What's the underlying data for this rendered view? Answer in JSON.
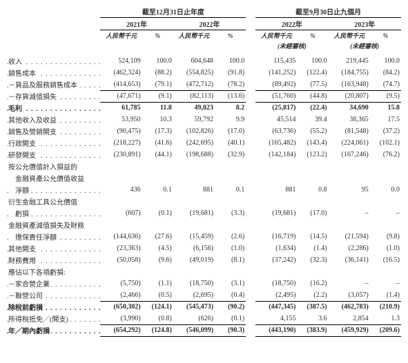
{
  "headers": {
    "period1_title": "截至12月31日止年度",
    "period2_title": "截至9月30日止九個月",
    "yr2021": "2021年",
    "yr2022": "2022年",
    "yr2022_9m": "2022年",
    "yr2023_9m": "2023年",
    "col_amount": "人民幣千元",
    "col_pct": "%",
    "unaudited": "(未經審核)"
  },
  "rows": [
    {
      "label": "收入",
      "v": [
        "524,109",
        "100.0",
        "604,648",
        "100.0",
        "115,435",
        "100.0",
        "219,445",
        "100.0"
      ],
      "dots": 1
    },
    {
      "label": "銷售成本",
      "v": [
        "(462,324)",
        "(88.2)",
        "(554,825)",
        "(91.8)",
        "(141,252)",
        "(122.4)",
        "(184,755)",
        "(84.2)"
      ],
      "dots": 1
    },
    {
      "label": "－貨品及服務銷售成本",
      "v": [
        "(414,653)",
        "(79.1)",
        "(472,712)",
        "(78.2)",
        "(89,492)",
        "(77.5)",
        "(163,948)",
        "(74.7)"
      ],
      "dots": 1
    },
    {
      "label": "－存貨減值損失",
      "v": [
        "(47,671)",
        "(9.1)",
        "(82,113)",
        "(13.6)",
        "(51,760)",
        "(44.8)",
        "(20,807)",
        "(9.5)"
      ],
      "topline": 1,
      "dots": 1
    },
    {
      "label": "毛利",
      "v": [
        "61,785",
        "11.8",
        "49,823",
        "8.2",
        "(25,817)",
        "(22.4)",
        "34,690",
        "15.8"
      ],
      "bold": 1,
      "topline": 1,
      "dots": 1
    },
    {
      "label": "其他收入及收益",
      "v": [
        "53,950",
        "10.3",
        "59,792",
        "9.9",
        "45,514",
        "39.4",
        "38,365",
        "17.5"
      ],
      "dots": 1
    },
    {
      "label": "銷售及營銷開支",
      "v": [
        "(90,475)",
        "(17.3)",
        "(102,826)",
        "(17.0)",
        "(63,736)",
        "(55.2)",
        "(81,548)",
        "(37.2)"
      ],
      "dots": 1
    },
    {
      "label": "行政開支",
      "v": [
        "(218,227)",
        "(41.6)",
        "(242,695)",
        "(40.1)",
        "(165,482)",
        "(143.4)",
        "(224,061)",
        "(102.1)"
      ],
      "dots": 1
    },
    {
      "label": "研發開支",
      "v": [
        "(230,891)",
        "(44.1)",
        "(198,688)",
        "(32.9)",
        "(142,184)",
        "(123.2)",
        "(167,246)",
        "(76.2)"
      ],
      "dots": 1
    },
    {
      "label": "按公允價值計入損益的",
      "v": [
        "",
        "",
        "",
        "",
        "",
        "",
        "",
        ""
      ]
    },
    {
      "label": "　金融資產公允價值收益",
      "v": [
        "",
        "",
        "",
        "",
        "",
        "",
        "",
        ""
      ]
    },
    {
      "label": "　淨額",
      "v": [
        "436",
        "0.1",
        "881",
        "0.1",
        "881",
        "0.8",
        "95",
        "0.0"
      ],
      "dots": 1
    },
    {
      "label": "衍生金融工具公允價值",
      "v": [
        "",
        "",
        "",
        "",
        "",
        "",
        "",
        ""
      ]
    },
    {
      "label": "　虧損",
      "v": [
        "(607)",
        "(0.1)",
        "(19,681)",
        "(3.3)",
        "(19,681)",
        "(17.0)",
        "–",
        "–"
      ],
      "dots": 1
    },
    {
      "label": "金融資產減值損失及財務",
      "v": [
        "",
        "",
        "",
        "",
        "",
        "",
        "",
        ""
      ]
    },
    {
      "label": "　擔保責任淨額",
      "v": [
        "(144,636)",
        "(27.6)",
        "(15,459)",
        "(2.6)",
        "(16,719)",
        "(14.5)",
        "(21,594)",
        "(9.8)"
      ],
      "dots": 1
    },
    {
      "label": "其他開支",
      "v": [
        "(23,363)",
        "(4.5)",
        "(6,156)",
        "(1.0)",
        "(1,634)",
        "(1.4)",
        "(2,286)",
        "(1.0)"
      ],
      "dots": 1
    },
    {
      "label": "財務費用",
      "v": [
        "(50,058)",
        "(9.6)",
        "(49,019)",
        "(8.1)",
        "(37,242)",
        "(32.3)",
        "(36,141)",
        "(16.5)"
      ],
      "dots": 1
    },
    {
      "label": "應佔以下各項虧損:",
      "v": [
        "",
        "",
        "",
        "",
        "",
        "",
        "",
        ""
      ]
    },
    {
      "label": "－家合營企業",
      "v": [
        "(5,750)",
        "(1.1)",
        "(18,750)",
        "(3.1)",
        "(18,750)",
        "(16.2)",
        "–",
        "–"
      ],
      "dots": 1
    },
    {
      "label": "－聯營公司",
      "v": [
        "(2,466)",
        "(0.5)",
        "(2,695)",
        "(0.4)",
        "(2,495)",
        "(2.2)",
        "(3,057)",
        "(1.4)"
      ],
      "dots": 1,
      "botline": 1
    },
    {
      "label": "除稅前虧損",
      "v": [
        "(650,302)",
        "(124.1)",
        "(545,473)",
        "(90.2)",
        "(447,345)",
        "(387.5)",
        "(462,783)",
        "(210.9)"
      ],
      "bold": 1,
      "dots": 1
    },
    {
      "label": "所得稅抵免╱(開支)",
      "v": [
        "(3,990)",
        "(0.8)",
        "(626)",
        "(0.1)",
        "4,155",
        "3.6",
        "2,854",
        "1.3"
      ],
      "dots": 1,
      "botline": 1
    },
    {
      "label": "年╱期內虧損",
      "v": [
        "(654,292)",
        "(124.8)",
        "(546,099)",
        "(90.3)",
        "(443,190)",
        "(383.9)",
        "(459,929)",
        "(209.6)"
      ],
      "bold": 1,
      "dots": 1,
      "dbl": 1
    }
  ]
}
